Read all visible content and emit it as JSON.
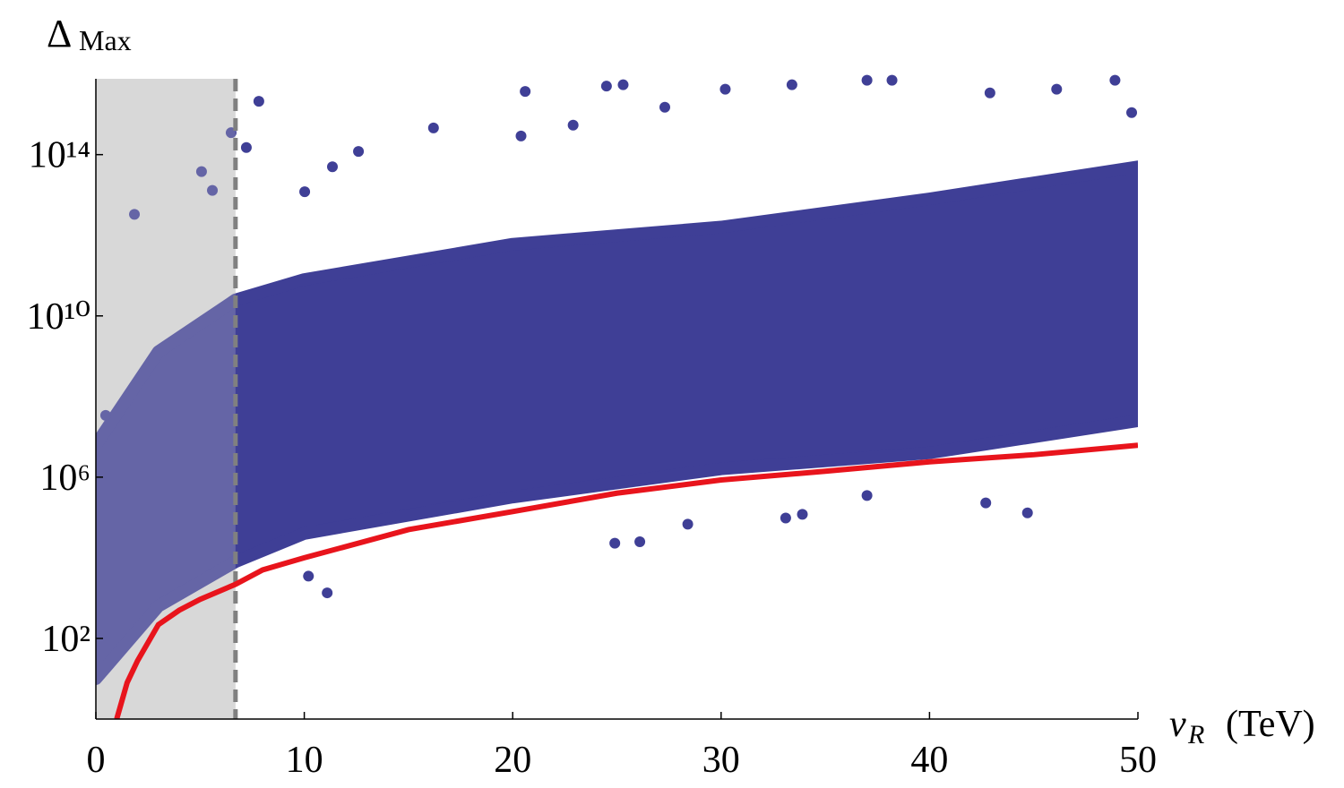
{
  "chart_data": {
    "type": "scatter",
    "y_label": "Δ",
    "y_label_subscript": "Max",
    "x_label": "v",
    "x_label_subscript": "R",
    "x_label_unit": "(TeV)",
    "xlim": [
      0,
      50
    ],
    "xticks": [
      0,
      10,
      20,
      30,
      40,
      50
    ],
    "ylim": [
      1,
      7600000000000000.0
    ],
    "log_y": true,
    "yticks": [
      {
        "value": 100,
        "label": "10²"
      },
      {
        "value": 1000000,
        "label": "10⁶"
      },
      {
        "value": 10000000000,
        "label": "10¹⁰"
      },
      {
        "value": 100000000000000,
        "label": "10¹⁴"
      }
    ],
    "excluded_region": {
      "xlim": [
        0,
        6.7
      ],
      "color": "#d9d9d9",
      "line_color": "#808080"
    },
    "band": {
      "color": "#3f3f96",
      "x": [
        0,
        3,
        6.7,
        10,
        20,
        30,
        40,
        50
      ],
      "upper": [
        6300000.0,
        1300000000.0,
        25000000000.0,
        80000000000.0,
        600000000000.0,
        1600000000000.0,
        8000000000000.0,
        50000000000000.0
      ],
      "lower": [
        10,
        630,
        8000,
        40000.0,
        320000.0,
        1600000.0,
        4000000.0,
        25000000.0
      ]
    },
    "points": {
      "color": "#3f3f96",
      "x": [
        0.47,
        1.85,
        5.07,
        5.59,
        6.49,
        7.22,
        7.82,
        10.02,
        11.35,
        12.6,
        16.2,
        20.4,
        20.6,
        22.9,
        24.5,
        25.3,
        27.3,
        30.2,
        33.4,
        37.0,
        38.2,
        42.9,
        46.1,
        48.9,
        49.7,
        10.2,
        11.1,
        24.9,
        26.1,
        28.4,
        33.1,
        33.9,
        37.0,
        42.7,
        44.7
      ],
      "y": [
        34000000.0,
        3300000000000.0,
        38000000000000.0,
        13000000000000.0,
        350000000000000.0,
        150000000000000.0,
        2100000000000000.0,
        12000000000000.0,
        50000000000000.0,
        120000000000000.0,
        460000000000000.0,
        290000000000000.0,
        3700000000000000.0,
        540000000000000.0,
        5000000000000000.0,
        5400000000000000.0,
        1500000000000000.0,
        4200000000000000.0,
        5400000000000000.0,
        7000000000000000.0,
        7000000000000000.0,
        3400000000000000.0,
        4200000000000000.0,
        7000000000000000.0,
        1100000000000000.0,
        3500,
        1350,
        23000.0,
        25000.0,
        68000.0,
        97000.0,
        120000.0,
        350000.0,
        230000.0,
        130000.0
      ]
    },
    "curve": {
      "color": "#e8141c",
      "x": [
        1,
        1.5,
        2,
        3,
        4,
        5,
        6.7,
        8,
        10,
        15,
        20,
        25,
        30,
        35,
        40,
        45,
        50
      ],
      "y": [
        1,
        8,
        28,
        220,
        500,
        930,
        2200,
        5000,
        10000,
        50000,
        140000,
        400000,
        850000,
        1400000,
        2400000,
        3600000,
        6200000
      ]
    }
  }
}
